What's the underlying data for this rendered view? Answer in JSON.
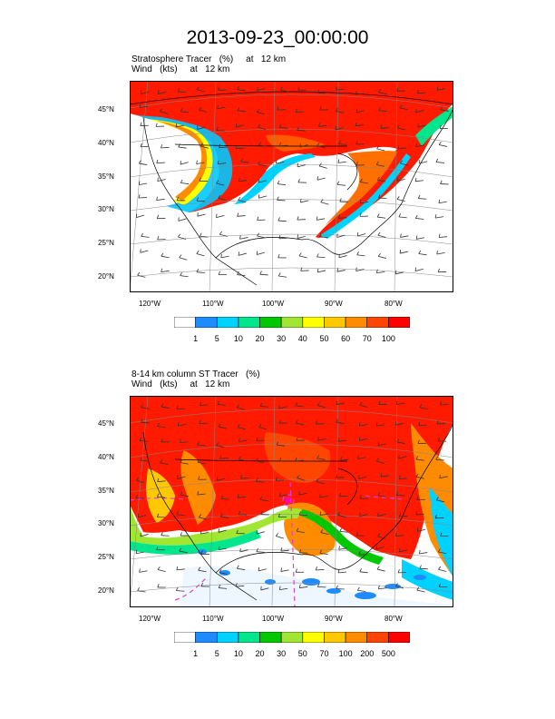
{
  "title": "2013-09-23_00:00:00",
  "panels": [
    {
      "subtitle_line1": "Stratosphere Tracer   (%)     at   12 km",
      "subtitle_line2": "Wind   (kts)     at   12 km",
      "lat_labels": [
        "45°N",
        "40°N",
        "35°N",
        "30°N",
        "25°N",
        "20°N"
      ],
      "lon_labels": [
        "120°W",
        "110°W",
        "100°W",
        "90°W",
        "80°W"
      ],
      "colorbar_colors": [
        "#ffffff",
        "#1e8cff",
        "#00d2ff",
        "#00e68c",
        "#00c800",
        "#a0e632",
        "#ffff00",
        "#ffc800",
        "#ff8c00",
        "#ff4600",
        "#ff0000"
      ],
      "colorbar_labels": [
        "1",
        "5",
        "10",
        "20",
        "30",
        "40",
        "50",
        "60",
        "70",
        "100"
      ]
    },
    {
      "subtitle_line1": "8-14 km column ST Tracer   (%)",
      "subtitle_line2": "Wind   (kts)     at   12 km",
      "lat_labels": [
        "45°N",
        "40°N",
        "35°N",
        "30°N",
        "25°N",
        "20°N"
      ],
      "lon_labels": [
        "120°W",
        "110°W",
        "100°W",
        "90°W",
        "80°W"
      ],
      "colorbar_colors": [
        "#ffffff",
        "#1e8cff",
        "#00d2ff",
        "#00e68c",
        "#00c800",
        "#a0e632",
        "#ffff00",
        "#ffc800",
        "#ff8c00",
        "#ff4600",
        "#ff0000"
      ],
      "colorbar_labels": [
        "1",
        "5",
        "10",
        "20",
        "30",
        "50",
        "70",
        "100",
        "200",
        "500"
      ]
    }
  ]
}
